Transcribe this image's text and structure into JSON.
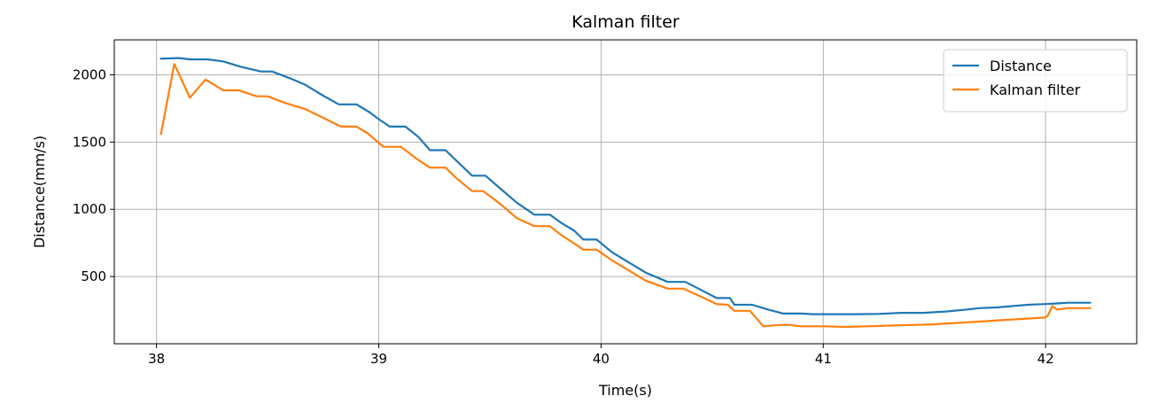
{
  "chart_data": {
    "type": "line",
    "title": "Kalman filter",
    "xlabel": "Time(s)",
    "ylabel": "Distance(mm/s)",
    "xlim": [
      37.81,
      42.41
    ],
    "ylim": [
      0,
      2260
    ],
    "xticks": [
      38,
      39,
      40,
      41,
      42
    ],
    "yticks": [
      500,
      1000,
      1500,
      2000
    ],
    "grid": true,
    "legend_position": "upper right",
    "series": [
      {
        "name": "Distance",
        "color": "#1f77b4",
        "x": [
          38.02,
          38.1,
          38.15,
          38.23,
          38.3,
          38.38,
          38.47,
          38.52,
          38.6,
          38.67,
          38.75,
          38.82,
          38.9,
          38.96,
          39.0,
          39.05,
          39.12,
          39.18,
          39.23,
          39.3,
          39.36,
          39.42,
          39.48,
          39.55,
          39.62,
          39.7,
          39.77,
          39.82,
          39.88,
          39.92,
          39.98,
          40.05,
          40.12,
          40.2,
          40.3,
          40.38,
          40.45,
          40.52,
          40.58,
          40.6,
          40.68,
          40.75,
          40.82,
          40.9,
          40.95,
          41.05,
          41.15,
          41.25,
          41.35,
          41.45,
          41.55,
          41.65,
          41.7,
          41.78,
          41.85,
          41.92,
          42.0,
          42.05,
          42.1,
          42.2
        ],
        "y": [
          2120,
          2125,
          2115,
          2115,
          2100,
          2060,
          2025,
          2025,
          1975,
          1925,
          1845,
          1780,
          1780,
          1720,
          1670,
          1615,
          1615,
          1535,
          1440,
          1440,
          1345,
          1250,
          1250,
          1150,
          1050,
          960,
          960,
          900,
          840,
          775,
          775,
          680,
          610,
          530,
          460,
          460,
          400,
          340,
          340,
          290,
          290,
          255,
          225,
          225,
          220,
          220,
          220,
          222,
          230,
          230,
          240,
          255,
          265,
          270,
          280,
          290,
          295,
          300,
          305,
          305
        ]
      },
      {
        "name": "Kalman filter",
        "color": "#ff7f0e",
        "x": [
          38.02,
          38.08,
          38.15,
          38.22,
          38.3,
          38.37,
          38.45,
          38.5,
          38.58,
          38.67,
          38.75,
          38.83,
          38.9,
          38.95,
          39.02,
          39.1,
          39.17,
          39.23,
          39.3,
          39.35,
          39.42,
          39.47,
          39.55,
          39.62,
          39.7,
          39.77,
          39.82,
          39.88,
          39.92,
          39.98,
          40.05,
          40.12,
          40.2,
          40.3,
          40.37,
          40.45,
          40.52,
          40.57,
          40.6,
          40.67,
          40.73,
          40.8,
          40.85,
          40.9,
          41.0,
          41.1,
          41.2,
          41.3,
          41.4,
          41.5,
          41.6,
          41.7,
          41.8,
          41.9,
          42.0,
          42.01,
          42.03,
          42.05,
          42.1,
          42.2
        ],
        "y": [
          1560,
          2080,
          1830,
          1965,
          1885,
          1885,
          1840,
          1840,
          1790,
          1745,
          1680,
          1615,
          1615,
          1565,
          1465,
          1465,
          1375,
          1310,
          1310,
          1230,
          1135,
          1135,
          1035,
          935,
          875,
          875,
          810,
          745,
          700,
          700,
          620,
          550,
          470,
          410,
          410,
          350,
          295,
          290,
          245,
          245,
          130,
          140,
          140,
          130,
          130,
          125,
          130,
          135,
          140,
          145,
          155,
          165,
          175,
          185,
          195,
          210,
          280,
          255,
          265,
          265
        ]
      }
    ]
  }
}
